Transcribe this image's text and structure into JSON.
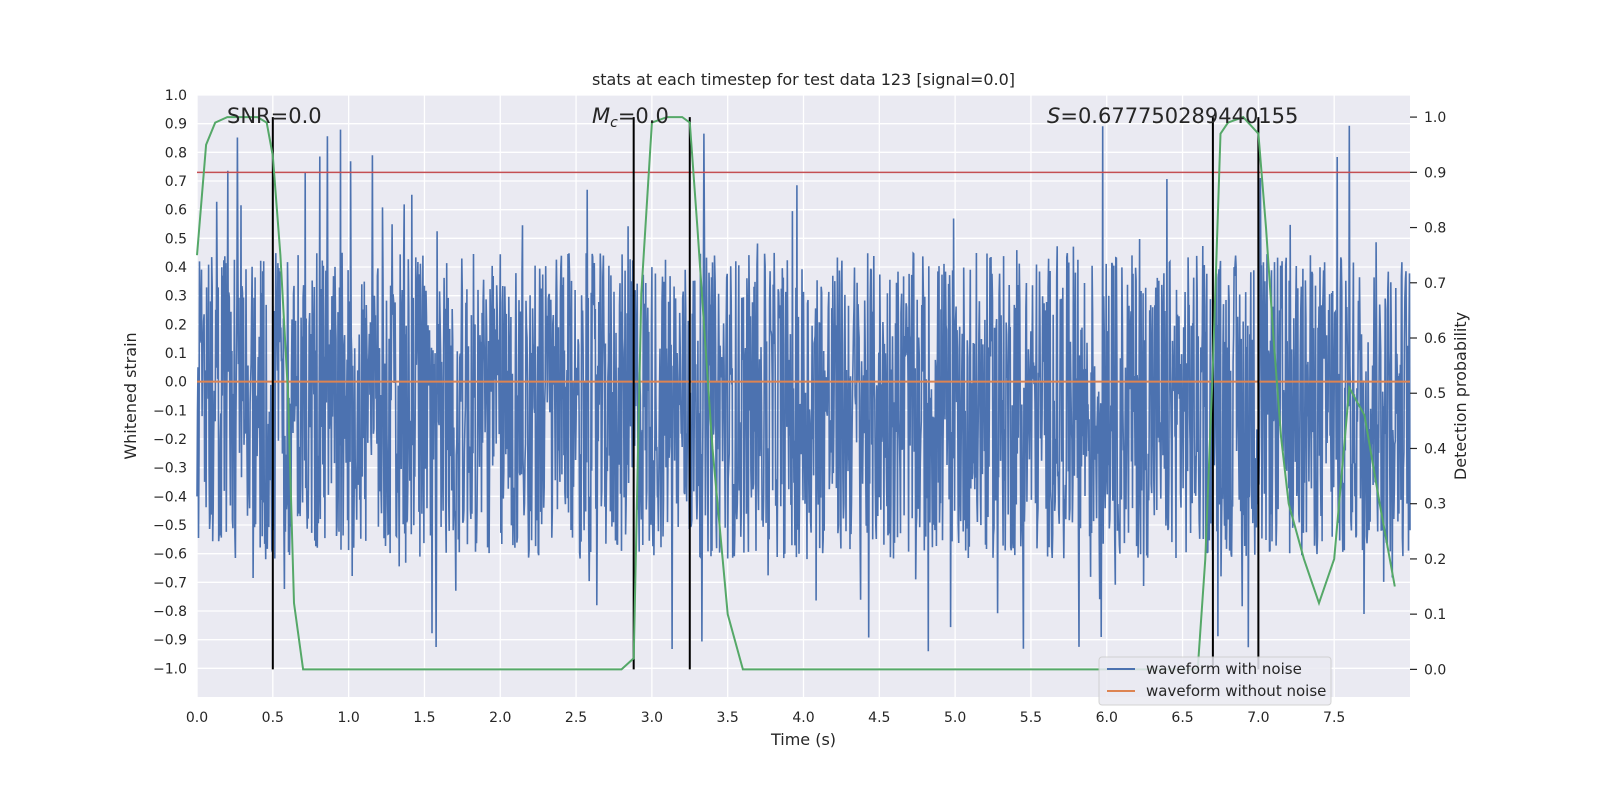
{
  "chart_data": {
    "type": "line",
    "title": "stats at each timestep for test data 123 [signal=0.0]",
    "xlabel": "Time (s)",
    "ylabel": "Whitened strain",
    "y2label": "Detection probability",
    "xlim": [
      0.0,
      8.0
    ],
    "ylim": [
      -1.1,
      1.0
    ],
    "y2lim": [
      -0.05,
      1.04
    ],
    "x_ticks": [
      "0.0",
      "0.5",
      "1.0",
      "1.5",
      "2.0",
      "2.5",
      "3.0",
      "3.5",
      "4.0",
      "4.5",
      "5.0",
      "5.5",
      "6.0",
      "6.5",
      "7.0",
      "7.5"
    ],
    "y_ticks": [
      "1.0",
      "0.9",
      "0.8",
      "0.7",
      "0.6",
      "0.5",
      "0.4",
      "0.3",
      "0.2",
      "0.1",
      "0.0",
      "−0.1",
      "−0.2",
      "−0.3",
      "−0.4",
      "−0.5",
      "−0.6",
      "−0.7",
      "−0.8",
      "−0.9",
      "−1.0"
    ],
    "y2_ticks": [
      "1.0",
      "0.9",
      "0.8",
      "0.7",
      "0.6",
      "0.5",
      "0.4",
      "0.3",
      "0.2",
      "0.1",
      "0.0"
    ],
    "annotations": {
      "snr": "SNR=0.0",
      "mc_symbol": "M",
      "mc_sub": "c",
      "mc_value": "=0.0",
      "s_symbol": "S",
      "s_value": "=0.677750289440155"
    },
    "legend": {
      "placement": "lower-right",
      "entries": [
        "waveform with noise",
        "waveform without noise"
      ]
    },
    "colors": {
      "noise": "#4c72b0",
      "clean": "#dd8452",
      "probability": "#55a868",
      "threshold": "#c44e52",
      "markers": "#000000",
      "background": "#eaeaf2",
      "grid": "#ffffff"
    },
    "series": [
      {
        "name": "waveform with noise",
        "axis": "left",
        "description": "dense noise, approx. uniform within [-0.6, 0.45] with spikes to ±0.9",
        "envelope": [
          -0.62,
          0.45
        ],
        "seed": 123
      },
      {
        "name": "waveform without noise",
        "axis": "left",
        "x": [
          0.0,
          8.0
        ],
        "y": [
          0.0,
          0.0
        ]
      },
      {
        "name": "detection probability",
        "axis": "right",
        "x": [
          0.0,
          0.06,
          0.12,
          0.2,
          0.3,
          0.4,
          0.46,
          0.5,
          0.55,
          0.6,
          0.64,
          0.7,
          0.75,
          1.0,
          1.5,
          2.0,
          2.5,
          2.8,
          2.88,
          2.93,
          3.0,
          3.1,
          3.2,
          3.25,
          3.3,
          3.35,
          3.4,
          3.5,
          3.6,
          3.7,
          4.0,
          4.5,
          5.0,
          5.5,
          6.0,
          6.5,
          6.6,
          6.65,
          6.7,
          6.75,
          6.8,
          6.9,
          7.0,
          7.05,
          7.1,
          7.15,
          7.2,
          7.3,
          7.35,
          7.4,
          7.5,
          7.6,
          7.7,
          7.8,
          7.9
        ],
        "y": [
          0.75,
          0.95,
          0.99,
          1.0,
          1.0,
          1.0,
          0.99,
          0.93,
          0.75,
          0.5,
          0.12,
          0.0,
          0.0,
          0.0,
          0.0,
          0.0,
          0.0,
          0.0,
          0.02,
          0.68,
          0.99,
          1.0,
          1.0,
          0.99,
          0.8,
          0.6,
          0.4,
          0.1,
          0.0,
          0.0,
          0.0,
          0.0,
          0.0,
          0.0,
          0.0,
          0.0,
          0.0,
          0.2,
          0.55,
          0.97,
          0.99,
          1.0,
          0.97,
          0.8,
          0.6,
          0.42,
          0.3,
          0.2,
          0.16,
          0.12,
          0.2,
          0.51,
          0.46,
          0.3,
          0.15
        ]
      },
      {
        "name": "detection threshold",
        "axis": "right",
        "x": [
          0.0,
          8.0
        ],
        "y": [
          0.9,
          0.9
        ]
      }
    ],
    "vertical_markers": [
      0.5,
      2.88,
      3.25,
      6.7,
      7.0
    ]
  }
}
